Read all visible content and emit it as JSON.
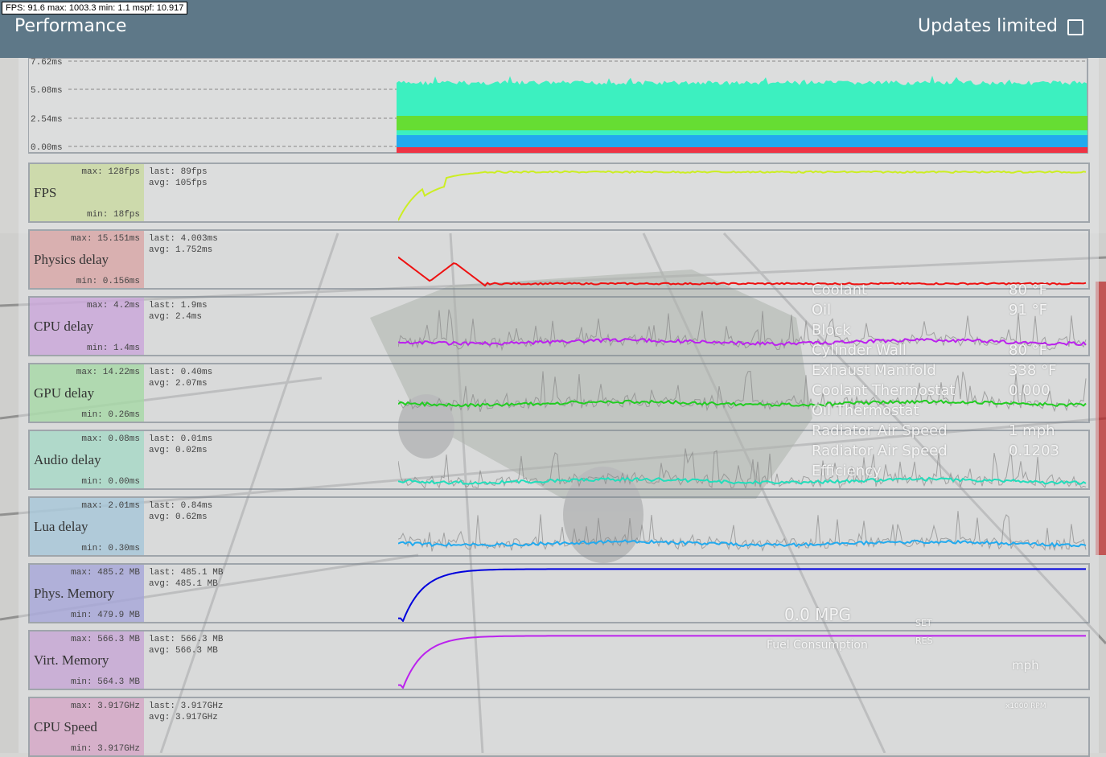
{
  "fps_counter": "FPS:  91.6  max: 1003.3  min:  1.1  mspf: 10.917",
  "header": {
    "title": "Performance",
    "updates_limited": "Updates limited"
  },
  "frame_chart": {
    "ticks": [
      "7.62ms",
      "5.08ms",
      "2.54ms",
      "0.00ms"
    ]
  },
  "panels": [
    {
      "name": "FPS",
      "max": "max: 128fps",
      "min": "min: 18fps",
      "last": "last: 89fps",
      "avg": "avg: 105fps"
    },
    {
      "name": "Physics delay",
      "max": "max: 15.151ms",
      "min": "min: 0.156ms",
      "last": "last: 4.003ms",
      "avg": "avg: 1.752ms"
    },
    {
      "name": "CPU delay",
      "max": "max: 4.2ms",
      "min": "min: 1.4ms",
      "last": "last: 1.9ms",
      "avg": "avg: 2.4ms"
    },
    {
      "name": "GPU delay",
      "max": "max: 14.22ms",
      "min": "min: 0.26ms",
      "last": "last: 0.40ms",
      "avg": "avg: 2.07ms"
    },
    {
      "name": "Audio delay",
      "max": "max: 0.08ms",
      "min": "min: 0.00ms",
      "last": "last: 0.01ms",
      "avg": "avg: 0.02ms"
    },
    {
      "name": "Lua delay",
      "max": "max: 2.01ms",
      "min": "min: 0.30ms",
      "last": "last: 0.84ms",
      "avg": "avg: 0.62ms"
    },
    {
      "name": "Phys. Memory",
      "max": "max: 485.2 MB",
      "min": "min: 479.9 MB",
      "last": "last: 485.1 MB",
      "avg": "avg: 485.1 MB"
    },
    {
      "name": "Virt. Memory",
      "max": "max: 566.3 MB",
      "min": "min: 564.3 MB",
      "last": "last: 566.3 MB",
      "avg": "avg: 566.3 MB"
    },
    {
      "name": "CPU Speed",
      "max": "max: 3.917GHz",
      "min": "min: 3.917GHz",
      "last": "last: 3.917GHz",
      "avg": "avg: 3.917GHz"
    }
  ],
  "game_overlay": {
    "temps": [
      [
        "Coolant",
        "80 °F"
      ],
      [
        "Oil",
        "91 °F"
      ],
      [
        "Block",
        ""
      ],
      [
        "Cylinder Wall",
        "80 °F"
      ],
      [
        "Exhaust Manifold",
        "338 °F"
      ],
      [
        "Coolant Thermostat",
        "0.000"
      ],
      [
        "Oil Thermostat",
        ""
      ],
      [
        "Radiator Air Speed",
        "1 mph"
      ],
      [
        "Radiator Air Speed",
        "0.1203"
      ],
      [
        "Efficiency",
        ""
      ]
    ],
    "mpg": "0.0 MPG",
    "fuel": "Fuel Consumption",
    "speed_unit": "mph",
    "rpm_unit": "x1000 RPM",
    "set": "SET",
    "res": "RES"
  }
}
